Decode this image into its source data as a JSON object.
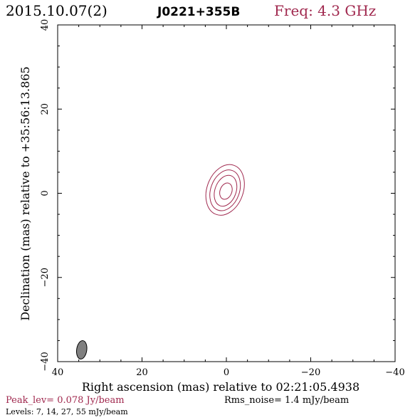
{
  "header": {
    "date": "2015.10.07(2)",
    "source": "J0221+355B",
    "freq": "Freq: 4.3 GHz"
  },
  "footer": {
    "peak": "Peak_lev=  0.078 Jy/beam",
    "rms": "Rms_noise=  1.4 mJy/beam",
    "levels": "Levels:   7,  14,  27,  55 mJy/beam"
  },
  "colors": {
    "contour": "#a0284e",
    "beam_fill": "#808080"
  },
  "chart_data": {
    "type": "contour",
    "xlabel": "Right ascension (mas) relative to 02:21:05.4938",
    "ylabel": "Declination (mas) relative to +35:56:13.865",
    "xlim": [
      40,
      -40
    ],
    "ylim": [
      -40,
      40
    ],
    "x_ticks": [
      40,
      20,
      0,
      -20,
      -40
    ],
    "y_ticks": [
      -40,
      -20,
      0,
      20,
      40
    ],
    "x_tick_labels": [
      "40",
      "20",
      "0",
      "−20",
      "−40"
    ],
    "y_tick_labels": [
      "−40",
      "−20",
      "0",
      "20",
      "40"
    ],
    "contour_levels_mJy": [
      7,
      14,
      27,
      55
    ],
    "peak_Jy_per_beam": 0.078,
    "rms_mJy_per_beam": 1.4,
    "contours": [
      {
        "level": 7,
        "center": [
          0.3,
          0.8
        ],
        "semi_major": 6.2,
        "semi_minor": 4.3,
        "pa_deg": -20
      },
      {
        "level": 14,
        "center": [
          0.3,
          0.7
        ],
        "semi_major": 5.0,
        "semi_minor": 3.4,
        "pa_deg": -20
      },
      {
        "level": 27,
        "center": [
          0.2,
          0.6
        ],
        "semi_major": 3.8,
        "semi_minor": 2.5,
        "pa_deg": -20
      },
      {
        "level": 55,
        "center": [
          0.1,
          0.5
        ],
        "semi_major": 2.0,
        "semi_minor": 1.4,
        "pa_deg": -20
      }
    ],
    "beam": {
      "center": [
        34.3,
        -37.2
      ],
      "bmaj": 2.2,
      "bmin": 1.2,
      "pa_deg": 8
    }
  }
}
